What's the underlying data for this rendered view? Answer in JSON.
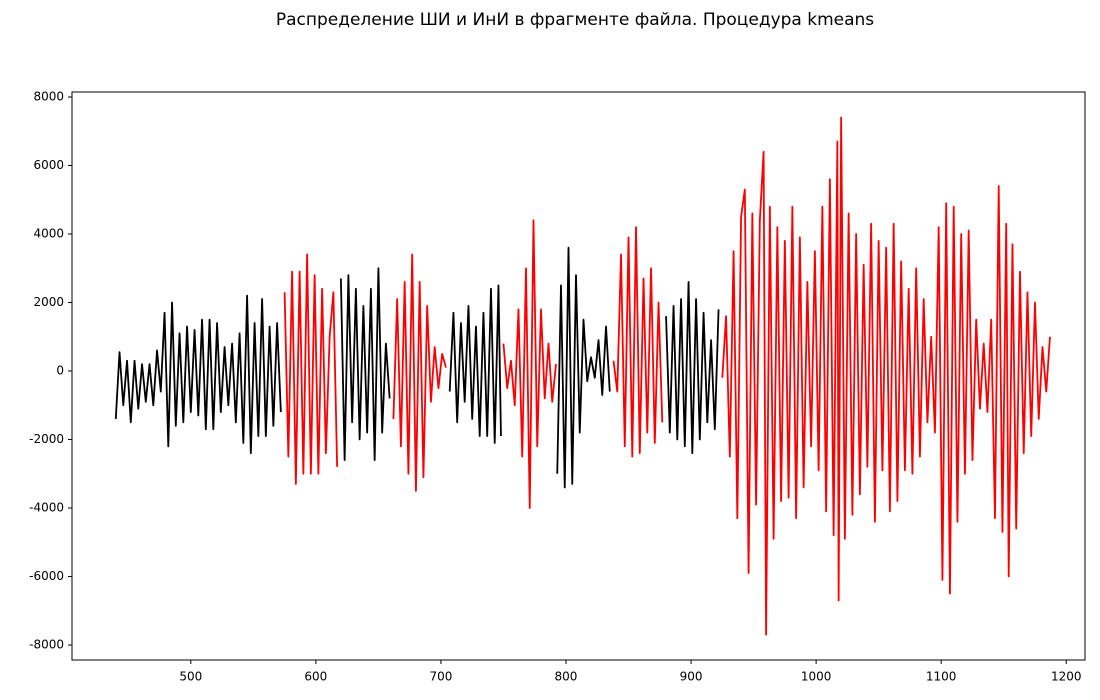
{
  "chart_data": {
    "type": "line",
    "title": "Распределение ШИ и ИнИ в фрагменте файла. Процедура kmeans",
    "xlim": [
      405,
      1215
    ],
    "ylim": [
      -8438,
      8146
    ],
    "xticks": [
      500,
      600,
      700,
      800,
      900,
      1000,
      1100,
      1200
    ],
    "yticks": [
      -8000,
      -6000,
      -4000,
      -2000,
      0,
      2000,
      4000,
      6000,
      8000
    ],
    "series": [
      {
        "color": "#000000",
        "x": [
          440,
          443,
          446,
          449,
          452,
          455,
          458,
          461,
          464,
          467,
          470,
          473,
          476,
          479,
          482,
          485,
          488,
          491,
          494,
          497,
          500,
          503,
          506,
          509,
          512,
          515,
          518,
          521,
          524,
          527,
          530,
          533,
          536,
          539,
          542,
          545,
          548,
          551,
          554,
          557,
          560,
          563,
          566,
          569,
          572,
          590,
          620,
          623,
          626,
          629,
          632,
          635,
          638,
          641,
          644,
          647,
          650,
          653,
          656,
          659,
          680,
          707,
          710,
          713,
          716,
          719,
          722,
          725,
          728,
          731,
          734,
          737,
          740,
          743,
          746,
          748,
          770,
          793,
          796,
          799,
          802,
          805,
          808,
          811,
          814,
          817,
          820,
          823,
          826,
          829,
          832,
          835,
          860,
          880,
          883,
          886,
          889,
          892,
          895,
          898,
          901,
          904,
          907,
          910,
          913,
          916,
          919,
          922
        ],
        "values": [
          -1400,
          550,
          -1000,
          300,
          -1500,
          300,
          -1100,
          200,
          -900,
          200,
          -1000,
          600,
          -600,
          1700,
          -2200,
          2000,
          -1600,
          1100,
          -1500,
          1300,
          -1200,
          1200,
          -1300,
          1500,
          -1700,
          1500,
          -1700,
          1400,
          -1200,
          700,
          -1000,
          800,
          -1500,
          1100,
          -2100,
          2200,
          -2400,
          1400,
          -1900,
          2100,
          -1900,
          1300,
          -1600,
          1400,
          -1200,
          null,
          2700,
          -2600,
          2800,
          -1500,
          2400,
          -2000,
          1900,
          -1800,
          2400,
          -2600,
          3000,
          -1800,
          800,
          -800,
          null,
          -600,
          1700,
          -1500,
          1400,
          -900,
          1900,
          -1400,
          1300,
          -1900,
          1700,
          -1900,
          2400,
          -2100,
          2500,
          -1900,
          null,
          -3000,
          2500,
          -3400,
          3600,
          -3300,
          2800,
          -1800,
          1500,
          -300,
          400,
          -200,
          900,
          -700,
          1300,
          -600,
          null,
          1600,
          -1800,
          1900,
          -2000,
          2100,
          -2200,
          2600,
          -2400,
          2100,
          -2000,
          1700,
          -1500,
          900,
          -1700,
          1800
        ]
      },
      {
        "color": "#ff0000",
        "x": [
          575,
          578,
          581,
          584,
          587,
          590,
          593,
          596,
          599,
          602,
          605,
          608,
          611,
          614,
          617,
          640,
          662,
          665,
          668,
          671,
          674,
          677,
          680,
          683,
          686,
          689,
          692,
          695,
          698,
          701,
          704,
          725,
          750,
          753,
          756,
          759,
          762,
          765,
          768,
          771,
          774,
          777,
          780,
          783,
          786,
          789,
          792,
          815,
          838,
          841,
          844,
          847,
          850,
          853,
          856,
          859,
          862,
          865,
          868,
          871,
          874,
          877,
          900,
          925,
          928,
          931,
          934,
          937,
          940,
          943,
          946,
          949,
          952,
          955,
          958,
          960,
          963,
          966,
          969,
          972,
          975,
          978,
          981,
          984,
          987,
          990,
          993,
          996,
          999,
          1002,
          1005,
          1008,
          1011,
          1014,
          1017,
          1018,
          1020,
          1023,
          1026,
          1029,
          1032,
          1035,
          1038,
          1041,
          1044,
          1047,
          1050,
          1053,
          1056,
          1059,
          1062,
          1065,
          1068,
          1071,
          1074,
          1077,
          1080,
          1083,
          1086,
          1089,
          1092,
          1095,
          1098,
          1101,
          1104,
          1107,
          1110,
          1113,
          1116,
          1119,
          1122,
          1125,
          1128,
          1131,
          1134,
          1137,
          1140,
          1143,
          1146,
          1149,
          1152,
          1154,
          1157,
          1160,
          1163,
          1166,
          1169,
          1172,
          1175,
          1178,
          1181,
          1184,
          1187
        ],
        "values": [
          2300,
          -2500,
          2900,
          -3300,
          2900,
          -3000,
          3400,
          -3000,
          2800,
          -3000,
          2400,
          -2400,
          1000,
          2300,
          -2800,
          null,
          -1400,
          2100,
          -2200,
          2600,
          -3000,
          3400,
          -3500,
          2600,
          -3100,
          1900,
          -900,
          700,
          -500,
          500,
          100,
          null,
          800,
          -500,
          300,
          -1000,
          1800,
          -2500,
          3000,
          -4000,
          4400,
          -2200,
          1800,
          -800,
          800,
          -900,
          200,
          null,
          300,
          -600,
          3400,
          -2200,
          3900,
          -2500,
          4200,
          -2400,
          2700,
          -1800,
          3000,
          -2100,
          2000,
          -1500,
          null,
          -200,
          1600,
          -2500,
          3500,
          -4300,
          4500,
          5300,
          -5900,
          4600,
          -3900,
          4400,
          6400,
          -7700,
          4800,
          -4900,
          4200,
          -3800,
          3800,
          -3700,
          4800,
          -4300,
          3900,
          -3400,
          2600,
          -2200,
          3500,
          -2900,
          4800,
          -4100,
          5600,
          -4800,
          6700,
          -6700,
          7400,
          -4900,
          4600,
          -4200,
          4000,
          -3600,
          3100,
          -2800,
          4300,
          -4400,
          3800,
          -2900,
          3600,
          -4100,
          4300,
          -3800,
          3200,
          -2900,
          2400,
          -3000,
          3000,
          -2500,
          2100,
          -1500,
          1000,
          -1800,
          4200,
          -6100,
          4900,
          -6500,
          4800,
          -4400,
          4000,
          -3000,
          4100,
          -2600,
          1500,
          -1100,
          800,
          -1200,
          1500,
          -4300,
          5400,
          -4700,
          4300,
          -6000,
          3700,
          -4600,
          2900,
          -2400,
          2300,
          -1900,
          2000,
          -1400,
          700,
          -600,
          1000
        ]
      }
    ]
  }
}
